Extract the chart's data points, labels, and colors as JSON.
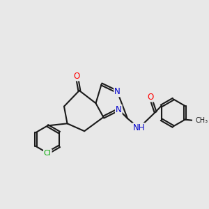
{
  "bg_color": "#e8e8e8",
  "bond_color": "#1a1a1a",
  "bond_width": 1.5,
  "dbo": 0.055,
  "atom_colors": {
    "O": "#ff0000",
    "N": "#0000cc",
    "Cl": "#00aa00",
    "NH": "#0000cc"
  },
  "fs": 8.5
}
